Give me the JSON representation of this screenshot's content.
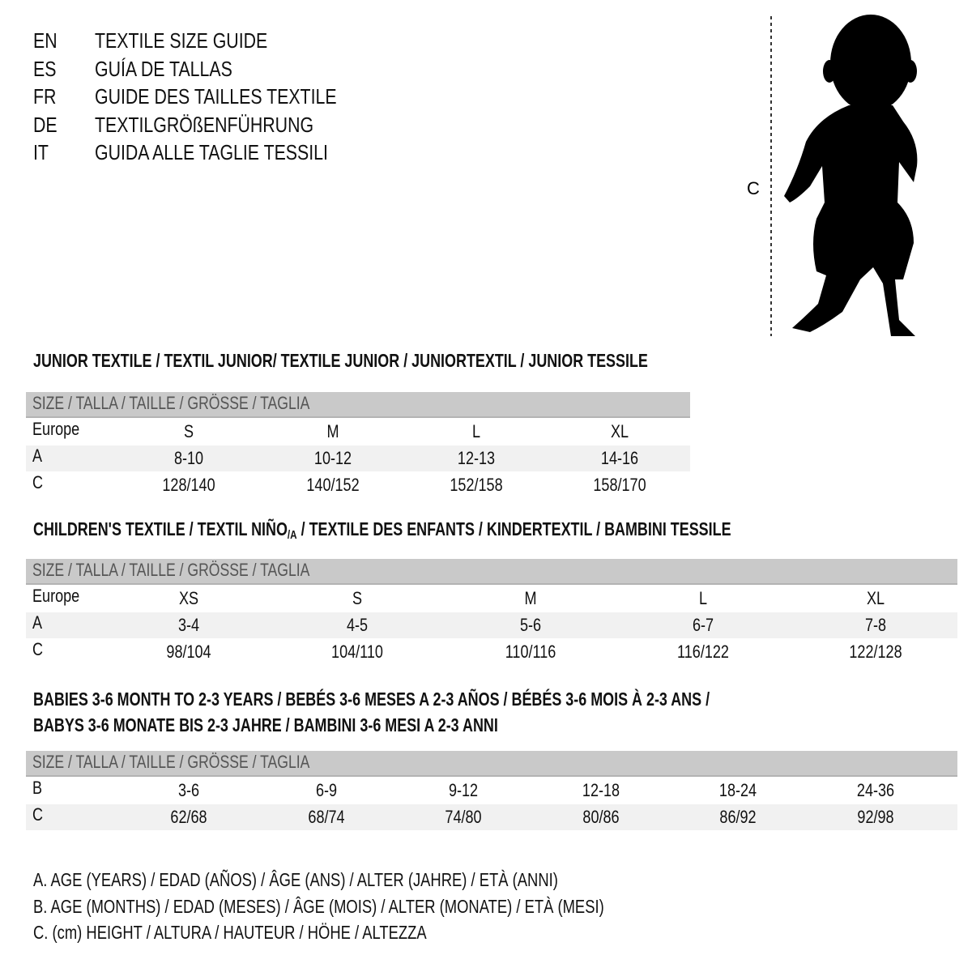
{
  "guide_titles": [
    {
      "lang": "EN",
      "title": "TEXTILE SIZE GUIDE"
    },
    {
      "lang": "ES",
      "title": "GUÍA DE TALLAS"
    },
    {
      "lang": "FR",
      "title": "GUIDE DES TAILLES TEXTILE"
    },
    {
      "lang": "DE",
      "title": "TEXTILGRÖßENFÜHRUNG"
    },
    {
      "lang": "IT",
      "title": "GUIDA ALLE TAGLIE TESSILI"
    }
  ],
  "figure": {
    "measure_label": "C"
  },
  "size_header": "SIZE / TALLA / TAILLE / GRÖSSE / TAGLIA",
  "junior": {
    "title": "JUNIOR TEXTILE / TEXTIL JUNIOR/ TEXTILE JUNIOR / JUNIORTEXTIL / JUNIOR TESSILE",
    "rows": [
      {
        "label": "Europe",
        "values": [
          "S",
          "M",
          "L",
          "XL"
        ]
      },
      {
        "label": "A",
        "values": [
          "8-10",
          "10-12",
          "12-13",
          "14-16"
        ]
      },
      {
        "label": "C",
        "values": [
          "128/140",
          "140/152",
          "152/158",
          "158/170"
        ]
      }
    ]
  },
  "children": {
    "title_a": "CHILDREN'S TEXTILE / TEXTIL NIÑO",
    "title_sub": "/A",
    "title_b": " / TEXTILE DES ENFANTS / KINDERTEXTIL / BAMBINI TESSILE",
    "rows": [
      {
        "label": "Europe",
        "values": [
          "XS",
          "S",
          "M",
          "L",
          "XL"
        ]
      },
      {
        "label": "A",
        "values": [
          "3-4",
          "4-5",
          "5-6",
          "6-7",
          "7-8"
        ]
      },
      {
        "label": "C",
        "values": [
          "98/104",
          "104/110",
          "110/116",
          "116/122",
          "122/128"
        ]
      }
    ]
  },
  "babies": {
    "title_1": "BABIES 3-6 MONTH TO 2-3 YEARS / BEBÉS 3-6 MESES A 2-3 AÑOS / BÉBÉS 3-6 MOIS À 2-3 ANS /",
    "title_2": "BABYS 3-6 MONATE BIS 2-3 JAHRE / BAMBINI 3-6 MESI A 2-3 ANNI",
    "rows": [
      {
        "label": "B",
        "values": [
          "3-6",
          "6-9",
          "9-12",
          "12-18",
          "18-24",
          "24-36"
        ]
      },
      {
        "label": "C",
        "values": [
          "62/68",
          "68/74",
          "74/80",
          "80/86",
          "86/92",
          "92/98"
        ]
      }
    ]
  },
  "legend": [
    "A. AGE (YEARS) / EDAD (AÑOS) / ÂGE (ANS) / ALTER (JAHRE) / ETÀ (ANNI)",
    "B. AGE (MONTHS) / EDAD (MESES) / ÂGE (MOIS) / ALTER (MONATE) / ETÀ (MESI)",
    "C. (cm) HEIGHT / ALTURA / HAUTEUR / HÖHE / ALTEZZA"
  ],
  "colors": {
    "header_bar": "#c9c9c9",
    "shaded_row": "#f1f1f1"
  }
}
